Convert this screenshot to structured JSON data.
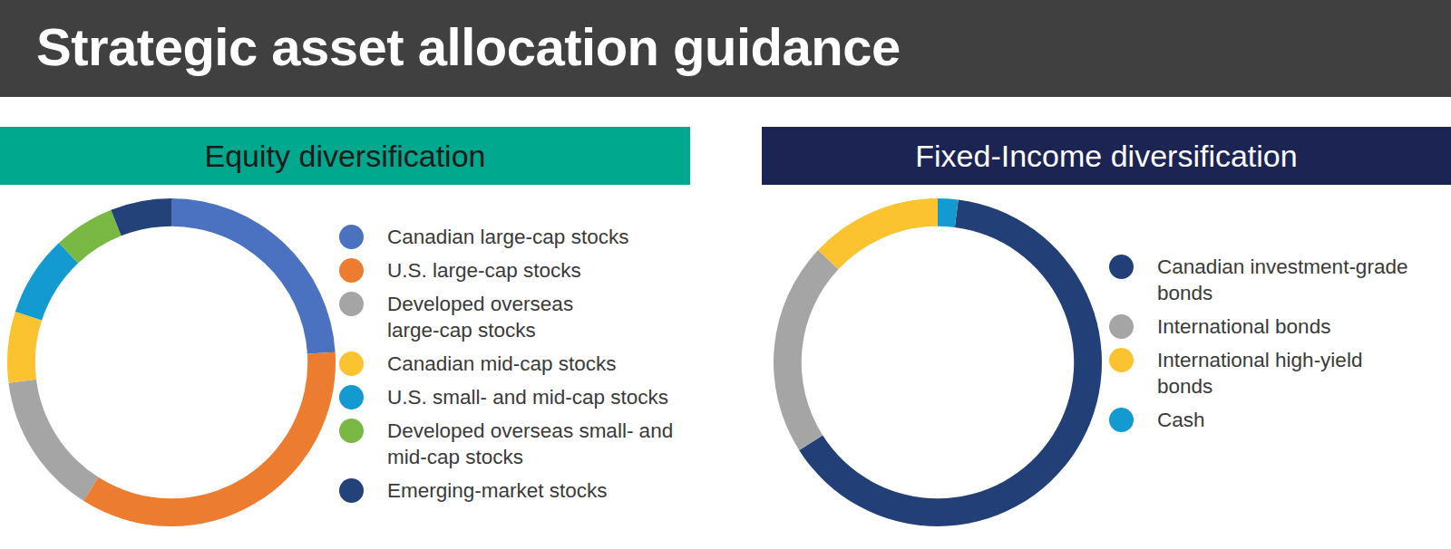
{
  "title": "Strategic asset allocation guidance",
  "chart_data": [
    {
      "type": "donut",
      "title": "Equity diversification",
      "categories": [
        "Canadian large-cap stocks",
        "U.S. large-cap stocks",
        "Developed overseas\nlarge-cap stocks",
        "Canadian mid-cap stocks",
        "U.S. small- and mid-cap stocks",
        "Developed overseas small- and\nmid-cap stocks",
        "Emerging-market stocks"
      ],
      "values": [
        24,
        35,
        14,
        7,
        8,
        6,
        6
      ],
      "colors": [
        "#4a72c0",
        "#ec7c30",
        "#a5a5a5",
        "#fbc330",
        "#139ad0",
        "#79b943",
        "#23427a"
      ]
    },
    {
      "type": "donut",
      "title": "Fixed-Income diversification",
      "categories": [
        "Canadian investment-grade\nbonds",
        "International bonds",
        "International high-yield\nbonds",
        "Cash"
      ],
      "values": [
        64,
        21,
        13,
        2
      ],
      "colors": [
        "#233f78",
        "#a5a5a5",
        "#fbc330",
        "#139ad0"
      ]
    }
  ]
}
